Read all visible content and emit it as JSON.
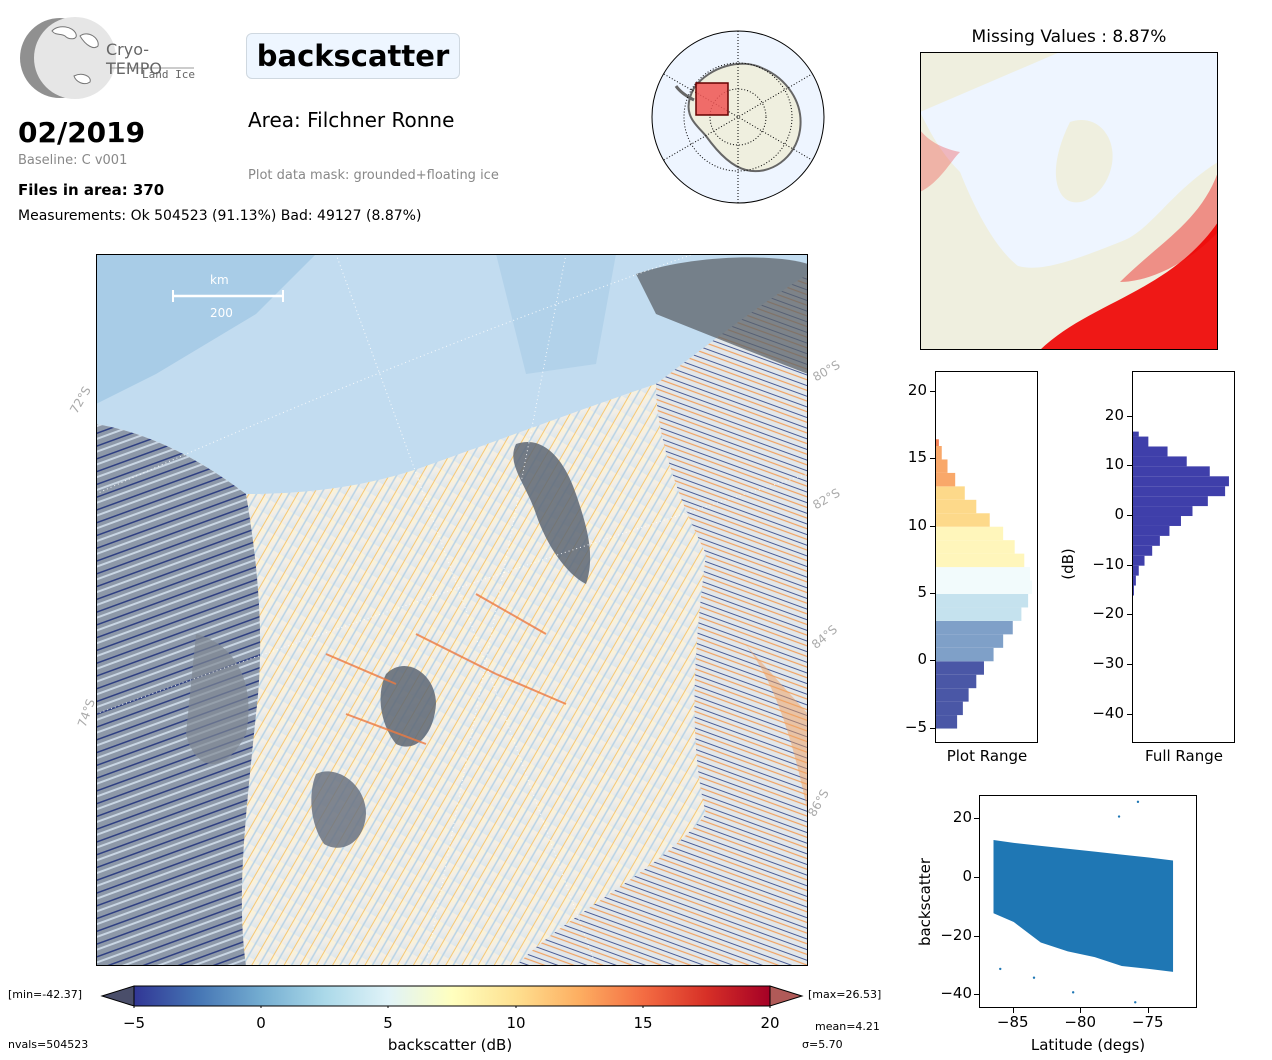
{
  "logo": {
    "name": "Cryo-TEMPO",
    "subtitle": "Land Ice"
  },
  "header": {
    "title": "backscatter",
    "date": "02/2019",
    "baseline": "Baseline: C v001",
    "files": "Files in area: 370",
    "measurements": "Measurements: Ok 504523 (91.13%) Bad: 49127 (8.87%)",
    "area": "Area: Filchner Ronne",
    "mask": "Plot data mask: grounded+floating ice"
  },
  "missing_title": "Missing Values : 8.87%",
  "map": {
    "scale_unit": "km",
    "scale_value": "200",
    "lat_labels": [
      "72°S",
      "74°S",
      "80°S",
      "82°S",
      "84°S",
      "86°S"
    ]
  },
  "colorbar": {
    "label": "backscatter (dB)",
    "ticks": [
      "−5",
      "0",
      "5",
      "10",
      "15",
      "20"
    ],
    "min_label": "[min=-42.37]",
    "max_label": "[max=26.53]",
    "mean": "mean=4.21",
    "sigma": "σ=5.70",
    "nvals": "nvals=504523"
  },
  "chart_data": [
    {
      "type": "histogram",
      "name_label": "Plot Range",
      "ylim": [
        -6,
        21.5
      ],
      "yticks": [
        "20",
        "15",
        "10",
        "5",
        "0",
        "−5"
      ],
      "bins_y": [
        -5,
        -4,
        -3,
        -2,
        -1,
        0,
        1,
        2,
        3,
        4,
        5,
        6,
        7,
        8,
        9,
        10,
        11,
        12,
        13,
        14,
        15,
        16,
        16.5
      ],
      "counts_rel": [
        0.22,
        0.28,
        0.34,
        0.42,
        0.5,
        0.6,
        0.7,
        0.8,
        0.89,
        0.96,
        1.0,
        0.98,
        0.92,
        0.82,
        0.7,
        0.56,
        0.42,
        0.3,
        0.2,
        0.12,
        0.06,
        0.03,
        0.01
      ]
    },
    {
      "type": "histogram",
      "name_label": "Full Range",
      "ylabel": "(dB)",
      "ylim": [
        -45.5,
        29
      ],
      "yticks": [
        "20",
        "10",
        "0",
        "−10",
        "−20",
        "−30",
        "−40"
      ],
      "bins_y": [
        -16,
        -14,
        -12,
        -10,
        -8,
        -6,
        -4,
        -2,
        0,
        2,
        4,
        6,
        8,
        10,
        12,
        14,
        16,
        17
      ],
      "counts_rel": [
        0.01,
        0.03,
        0.06,
        0.12,
        0.2,
        0.28,
        0.38,
        0.5,
        0.62,
        0.78,
        0.96,
        1.0,
        0.8,
        0.56,
        0.36,
        0.16,
        0.06,
        0.02
      ]
    },
    {
      "type": "scatter",
      "xlabel": "Latitude (degs)",
      "ylabel": "backscatter",
      "xlim": [
        -87.5,
        -71.5
      ],
      "ylim": [
        -44,
        28
      ],
      "xticks": [
        "−85",
        "−80",
        "−75"
      ],
      "yticks": [
        "20",
        "0",
        "−20",
        "−40"
      ],
      "band_x": [
        -86.5,
        -85,
        -83,
        -81,
        -79,
        -77,
        -75,
        -73.2
      ],
      "band_upper": [
        13,
        12,
        11,
        10,
        9,
        8,
        7,
        6
      ],
      "band_lower": [
        -12,
        -15,
        -22,
        -25,
        -27,
        -30,
        -31,
        -32
      ],
      "outliers": [
        [
          -75.8,
          26
        ],
        [
          -77.2,
          21
        ],
        [
          -86,
          -31
        ],
        [
          -83.5,
          -34
        ],
        [
          -80.6,
          -39
        ],
        [
          -76,
          -42.4
        ]
      ]
    }
  ],
  "colors": {
    "scatter": "#1f77b4",
    "full_hist": "#3f3faa",
    "missing": "#ee0000",
    "land": "#efefdf",
    "sea": "#eef5ff"
  }
}
